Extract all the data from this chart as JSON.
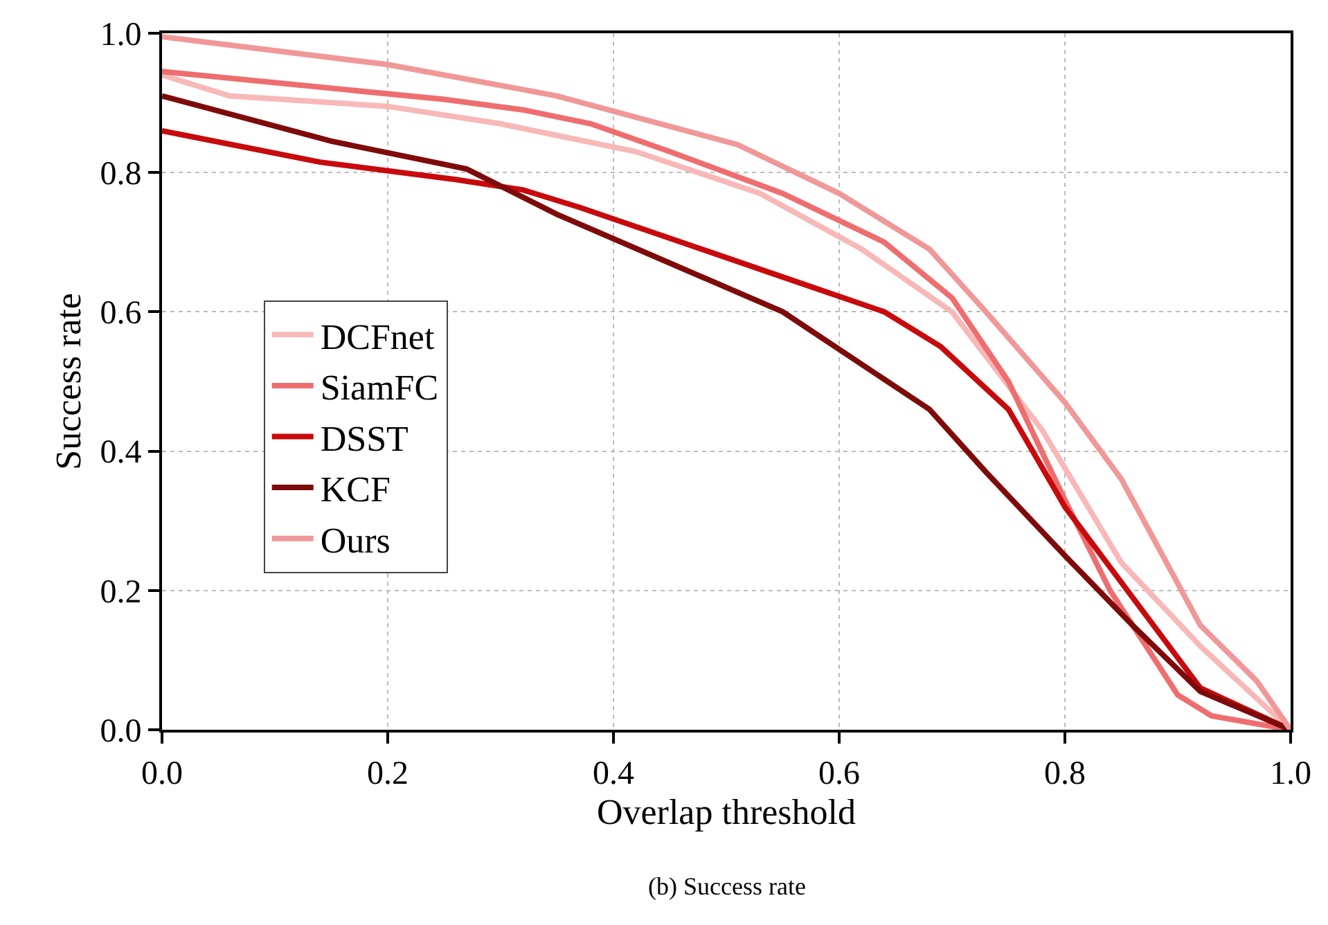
{
  "chart_data": {
    "type": "line",
    "xlabel": "Overlap threshold",
    "ylabel": "Success rate",
    "annotations": [
      "(b) Success rate"
    ],
    "xlim": [
      0,
      1
    ],
    "ylim": [
      0,
      1
    ],
    "xticks": [
      {
        "value": 0,
        "label": "0.0"
      },
      {
        "value": 0.2,
        "label": "0.2"
      },
      {
        "value": 0.4,
        "label": "0.4"
      },
      {
        "value": 0.6,
        "label": "0.6"
      },
      {
        "value": 0.8,
        "label": "0.8"
      },
      {
        "value": 1,
        "label": "1.0"
      }
    ],
    "yticks": [
      {
        "value": 0,
        "label": "0.0"
      },
      {
        "value": 0.2,
        "label": "0.2"
      },
      {
        "value": 0.4,
        "label": "0.4"
      },
      {
        "value": 0.6,
        "label": "0.6"
      },
      {
        "value": 0.8,
        "label": "0.8"
      },
      {
        "value": 1,
        "label": "1.0"
      }
    ],
    "grid": true,
    "legend": "left",
    "marker": "none",
    "line_style": "solid",
    "series": [
      {
        "name": "DCFnet",
        "color": "#f8b8b8",
        "x": [
          0,
          0.06,
          0.2,
          0.3,
          0.42,
          0.53,
          0.62,
          0.7,
          0.78,
          0.85,
          0.92,
          1.0
        ],
        "values": [
          0.94,
          0.91,
          0.895,
          0.87,
          0.83,
          0.77,
          0.69,
          0.6,
          0.43,
          0.24,
          0.12,
          0
        ]
      },
      {
        "name": "SiamFC",
        "color": "#ee6e70",
        "x": [
          0,
          0.25,
          0.32,
          0.38,
          0.45,
          0.55,
          0.64,
          0.7,
          0.75,
          0.8,
          0.84,
          0.9,
          0.93,
          1.0
        ],
        "values": [
          0.945,
          0.905,
          0.89,
          0.87,
          0.83,
          0.77,
          0.7,
          0.62,
          0.5,
          0.33,
          0.2,
          0.05,
          0.02,
          0
        ]
      },
      {
        "name": "DSST",
        "color": "#c80a0c",
        "x": [
          0,
          0.14,
          0.26,
          0.32,
          0.37,
          0.46,
          0.55,
          0.64,
          0.69,
          0.75,
          0.8,
          0.92,
          1.0
        ],
        "values": [
          0.86,
          0.815,
          0.79,
          0.775,
          0.75,
          0.7,
          0.65,
          0.6,
          0.55,
          0.46,
          0.32,
          0.06,
          0
        ]
      },
      {
        "name": "KCF",
        "color": "#7f0a0a",
        "x": [
          0,
          0.15,
          0.27,
          0.35,
          0.45,
          0.55,
          0.68,
          0.73,
          0.8,
          0.86,
          0.92,
          1.0
        ],
        "values": [
          0.91,
          0.845,
          0.805,
          0.74,
          0.67,
          0.6,
          0.46,
          0.37,
          0.25,
          0.15,
          0.055,
          0
        ]
      },
      {
        "name": "Ours",
        "color": "#f09898",
        "x": [
          0,
          0.2,
          0.35,
          0.51,
          0.6,
          0.68,
          0.73,
          0.8,
          0.85,
          0.92,
          0.97,
          1.0
        ],
        "values": [
          0.995,
          0.955,
          0.91,
          0.84,
          0.77,
          0.69,
          0.6,
          0.47,
          0.36,
          0.15,
          0.07,
          0
        ]
      }
    ]
  }
}
